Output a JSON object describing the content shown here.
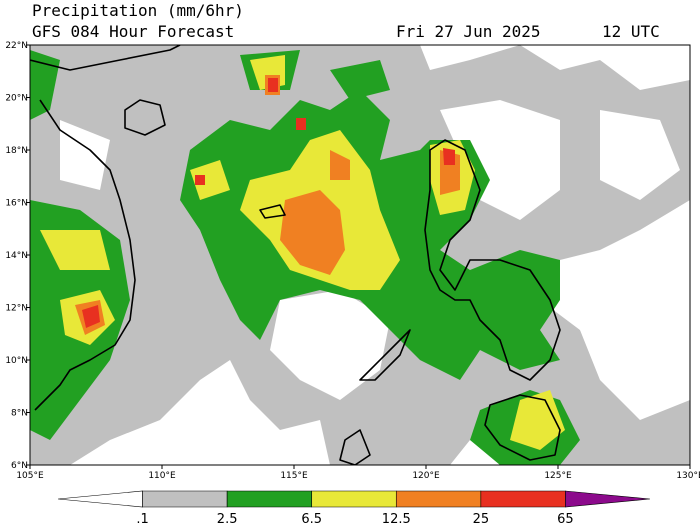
{
  "header": {
    "title": "Precipitation (mm/6hr)",
    "subtitle": "GFS 084 Hour Forecast",
    "date": "Fri 27 Jun 2025",
    "time": "12 UTC"
  },
  "map": {
    "lon_labels": [
      "105°E",
      "110°E",
      "115°E",
      "120°E",
      "125°E",
      "130°E"
    ],
    "lat_labels": [
      "22°N",
      "20°N",
      "18°N",
      "16°N",
      "14°N",
      "12°N",
      "10°N",
      "8°N",
      "6°N"
    ]
  },
  "colorbar": {
    "labels": [
      ".1",
      "2.5",
      "6.5",
      "12.5",
      "25",
      "65"
    ],
    "colors": [
      "#ffffff",
      "#c0c0c0",
      "#22a022",
      "#e8e838",
      "#f08022",
      "#e83020",
      "#8c0a8c"
    ]
  }
}
